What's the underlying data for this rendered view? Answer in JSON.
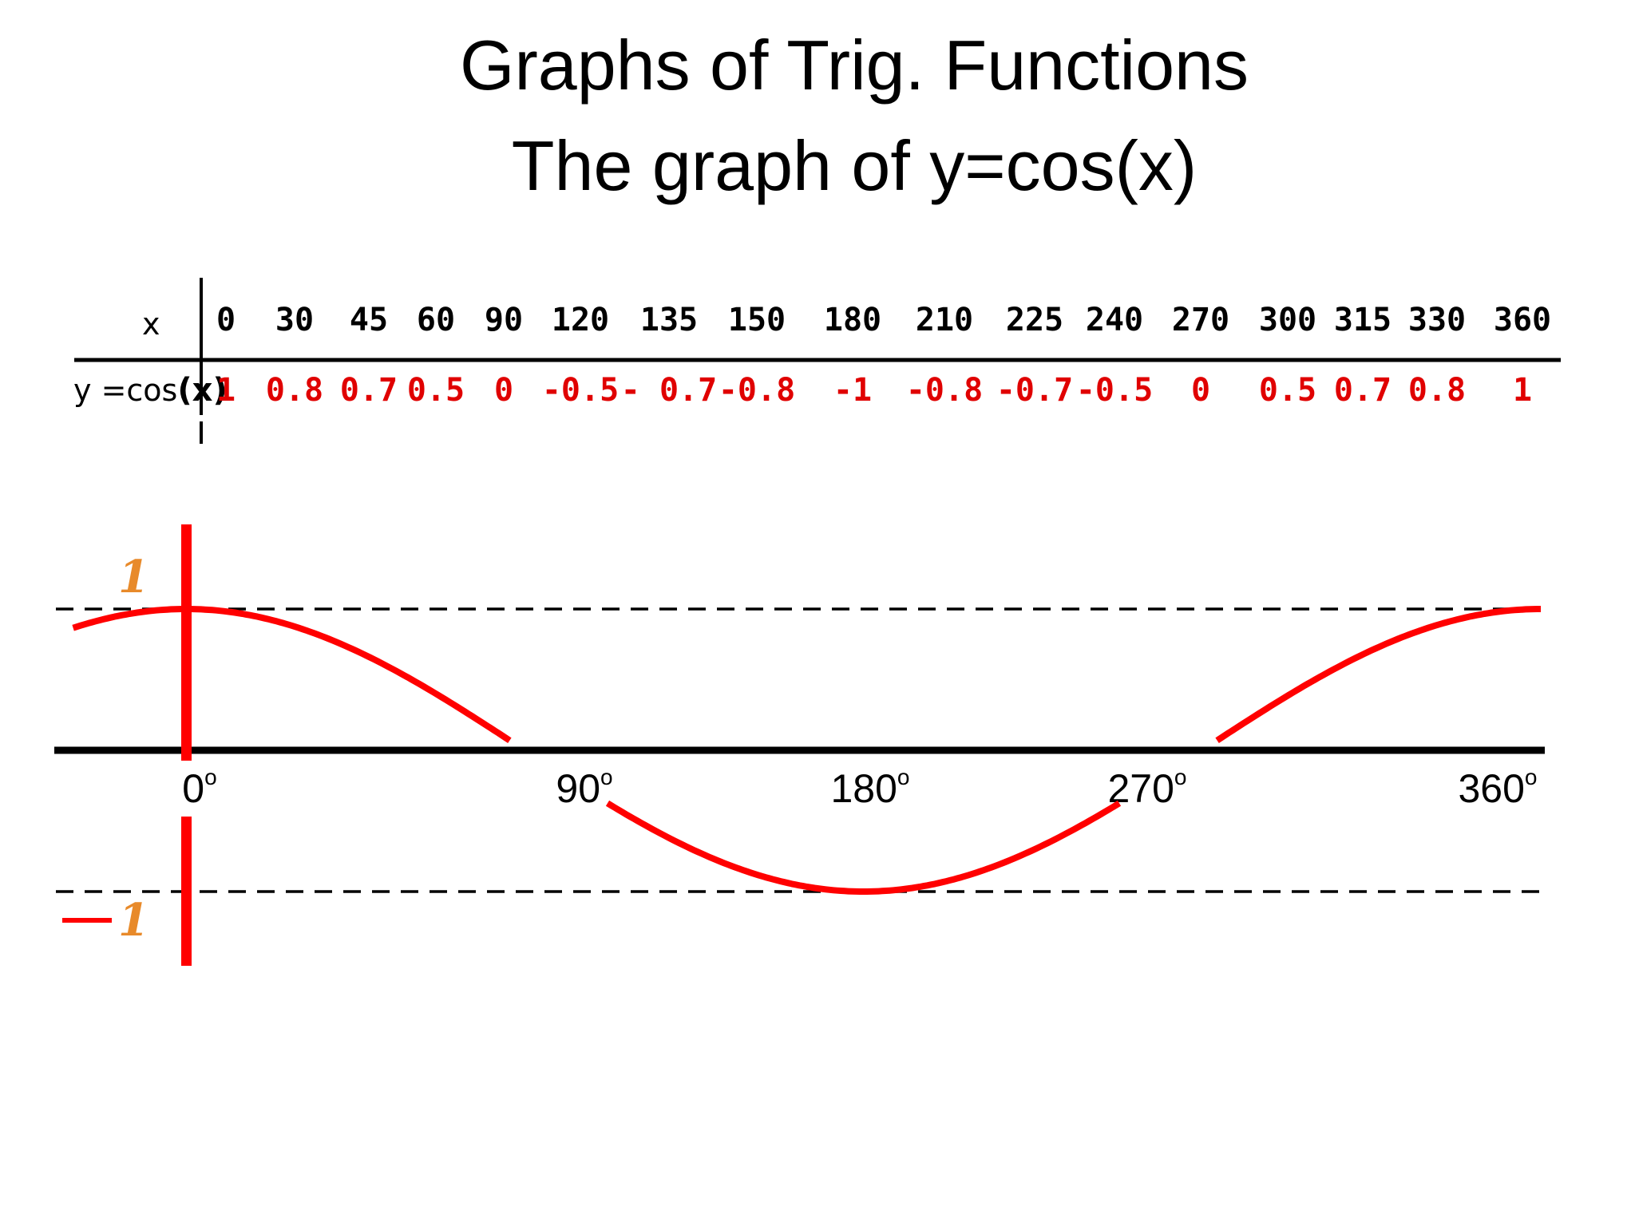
{
  "title_line1": "Graphs of Trig. Functions",
  "title_line2": "The graph of y=cos(x)",
  "table": {
    "x_header": "x",
    "y_header": "y =cos",
    "y_header_arg": "(x)",
    "x_values": [
      "0",
      "30",
      "45",
      "60",
      "90",
      "120",
      "135",
      "150",
      "180",
      "210",
      "225",
      "240",
      "270",
      "300",
      "315",
      "330",
      "360"
    ],
    "y_values": [
      "1",
      "0.8",
      "0.7",
      "0.5",
      "0",
      "-0.5",
      "- 0.7",
      "-0.8",
      "-1",
      "-0.8",
      "-0.7",
      "-0.5",
      "0",
      "0.5",
      "0.7",
      "0.8",
      "1"
    ],
    "header_color": "#000000",
    "value_color": "#e00000"
  },
  "chart_data": {
    "type": "line",
    "function": "y=cos(x)",
    "x_unit": "degrees",
    "xlim": [
      -30,
      360
    ],
    "ylim": [
      -1,
      1
    ],
    "x_ticks": [
      0,
      90,
      180,
      270,
      360
    ],
    "x_tick_labels": [
      "0",
      "90",
      "180",
      "270",
      "360"
    ],
    "x_tick_suffix": "o",
    "y_tick_labels": [
      "1",
      "−1"
    ],
    "dashed_reference_lines": [
      1,
      -1
    ],
    "visible_segments": [
      {
        "x_from": -30,
        "x_to": 86
      },
      {
        "x_from": 112,
        "x_to": 248
      },
      {
        "x_from": 274,
        "x_to": 360
      }
    ],
    "series": [
      {
        "x": [
          0,
          30,
          45,
          60,
          90,
          120,
          135,
          150,
          180,
          210,
          225,
          240,
          270,
          300,
          315,
          330,
          360
        ],
        "y": [
          1,
          0.8,
          0.7,
          0.5,
          0,
          -0.5,
          -0.7,
          -0.8,
          -1,
          -0.8,
          -0.7,
          -0.5,
          0,
          0.5,
          0.7,
          0.8,
          1
        ]
      }
    ],
    "curve_color": "#ff0000",
    "axis_color": "#000000",
    "y_axis_color": "#ff0000",
    "label_color": "#e88a2a"
  }
}
